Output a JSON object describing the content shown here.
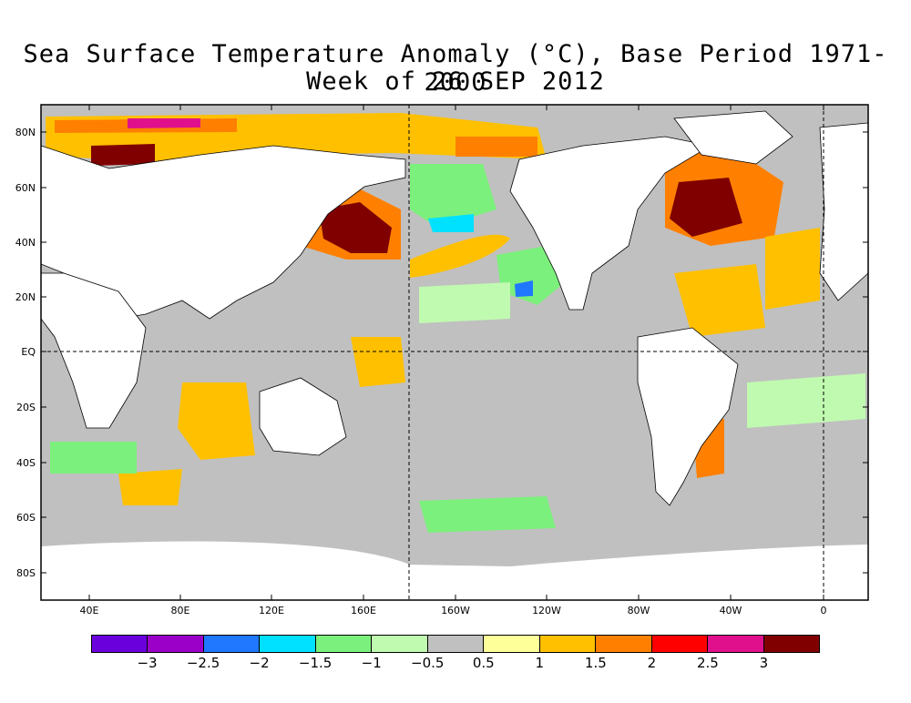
{
  "title": {
    "line1": "Sea Surface Temperature Anomaly (°C), Base Period 1971-2000",
    "line2": "Week of 26 SEP 2012"
  },
  "map": {
    "lat_ticks": [
      "80N",
      "60N",
      "40N",
      "20N",
      "EQ",
      "20S",
      "40S",
      "60S",
      "80S"
    ],
    "lon_ticks": [
      "40E",
      "80E",
      "120E",
      "160E",
      "160W",
      "120W",
      "80W",
      "40W",
      "0"
    ]
  },
  "colorbar": {
    "colors": [
      "#6a00dc",
      "#9b00c8",
      "#1f78ff",
      "#00e0ff",
      "#7cf07c",
      "#c0fab0",
      "#c0c0c0",
      "#ffff9a",
      "#ffc000",
      "#ff8000",
      "#ff0000",
      "#e0108c",
      "#800000"
    ],
    "labels": [
      "-3",
      "-2.5",
      "-2",
      "-1.5",
      "-1",
      "-0.5",
      "0.5",
      "1",
      "1.5",
      "2",
      "2.5",
      "3"
    ]
  },
  "colors": {
    "land": "#ffffff",
    "ocean_neutral": "#c0c0c0",
    "ice": "#ffffff"
  }
}
